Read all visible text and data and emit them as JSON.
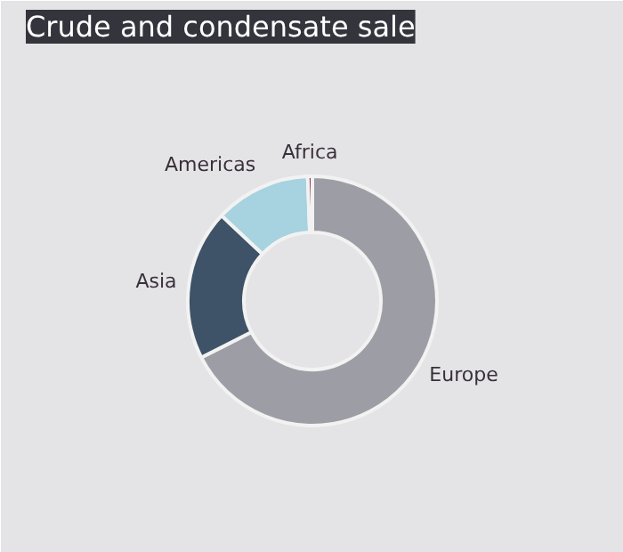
{
  "chart_data": {
    "type": "donut",
    "title": "Crude and condensate sale",
    "categories": [
      "Europe",
      "Asia",
      "Americas",
      "Africa"
    ],
    "values": [
      67.5,
      19.5,
      12.4,
      0.6
    ],
    "colors": [
      "#9d9ea5",
      "#3e5268",
      "#a7d2df",
      "#8a3a63"
    ]
  }
}
